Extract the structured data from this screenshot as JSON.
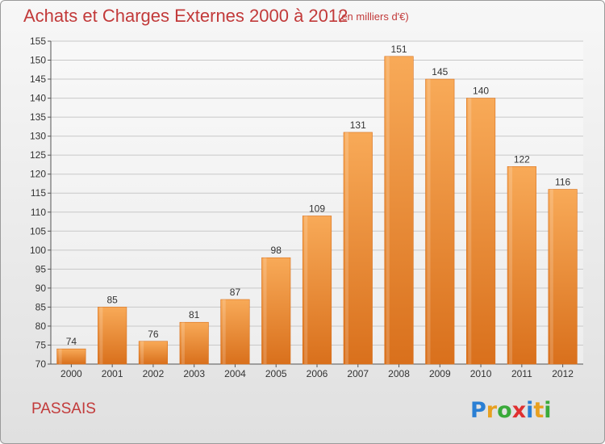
{
  "header": {
    "title": "Achats et Charges Externes 2000 à 2012",
    "unit": "(en milliers d'€)"
  },
  "footer": {
    "city": "PASSAIS",
    "logo_text": "Proxiti"
  },
  "colors": {
    "title": "#c23a3a",
    "bar": "#f08c2e",
    "bar_light": "#f8aa58",
    "bar_dark": "#d9701c"
  },
  "chart_data": {
    "type": "bar",
    "title": "Achats et Charges Externes 2000 à 2012",
    "subtitle": "(en milliers d'€)",
    "categories": [
      "2000",
      "2001",
      "2002",
      "2003",
      "2004",
      "2005",
      "2006",
      "2007",
      "2008",
      "2009",
      "2010",
      "2011",
      "2012"
    ],
    "values": [
      74,
      85,
      76,
      81,
      87,
      98,
      109,
      131,
      151,
      145,
      140,
      122,
      116
    ],
    "ylim": [
      70,
      155
    ],
    "yticks": [
      70,
      75,
      80,
      85,
      90,
      95,
      100,
      105,
      110,
      115,
      120,
      125,
      130,
      135,
      140,
      145,
      150,
      155
    ],
    "grid": true,
    "data_labels": true
  }
}
